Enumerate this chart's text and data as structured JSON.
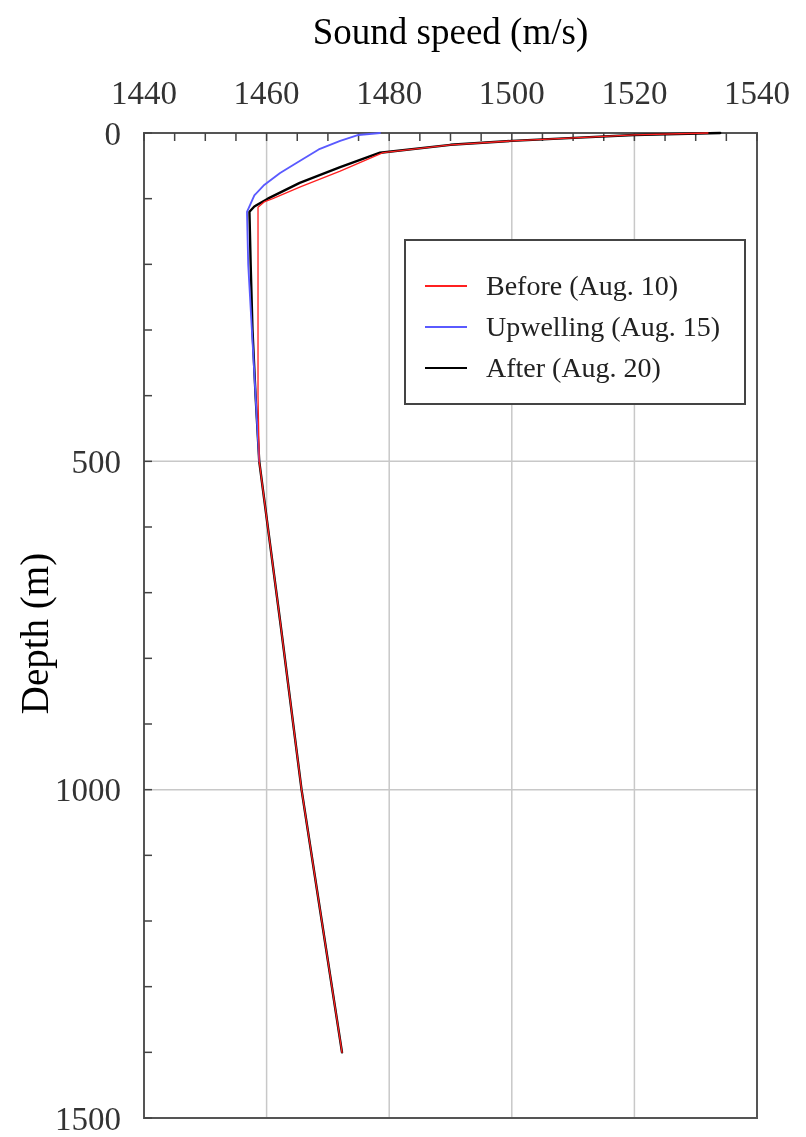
{
  "chart_data": {
    "type": "line",
    "xlabel": "Sound speed (m/s)",
    "ylabel": "Depth (m)",
    "xlim": [
      1440,
      1540
    ],
    "ylim": [
      1500,
      0
    ],
    "xticks": [
      1440,
      {
        "value": 1445,
        "label": null
      },
      {
        "value": 1450,
        "label": null
      },
      {
        "value": 1455,
        "label": null
      },
      1460,
      {
        "value": 1465,
        "label": null
      },
      {
        "value": 1470,
        "label": null
      },
      {
        "value": 1475,
        "label": null
      },
      1480,
      {
        "value": 1485,
        "label": null
      },
      {
        "value": 1490,
        "label": null
      },
      {
        "value": 1495,
        "label": null
      },
      1500,
      {
        "value": 1505,
        "label": null
      },
      {
        "value": 1510,
        "label": null
      },
      {
        "value": 1515,
        "label": null
      },
      1520,
      {
        "value": 1525,
        "label": null
      },
      {
        "value": 1530,
        "label": null
      },
      {
        "value": 1535,
        "label": null
      },
      1540
    ],
    "yticks": [
      0,
      {
        "value": 100,
        "label": null
      },
      {
        "value": 200,
        "label": null
      },
      {
        "value": 300,
        "label": null
      },
      {
        "value": 400,
        "label": null
      },
      500,
      {
        "value": 600,
        "label": null
      },
      {
        "value": 700,
        "label": null
      },
      {
        "value": 800,
        "label": null
      },
      {
        "value": 900,
        "label": null
      },
      1000,
      {
        "value": 1100,
        "label": null
      },
      {
        "value": 1200,
        "label": null
      },
      {
        "value": 1300,
        "label": null
      },
      {
        "value": 1400,
        "label": null
      },
      1500
    ],
    "grid": true,
    "legend": "top right",
    "series": [
      {
        "name": "Before (Aug. 10)",
        "color": "#ff2020",
        "x": [
          1532,
          1520,
          1511,
          1500,
          1490,
          1479,
          1472,
          1465.5,
          1461,
          1459.6,
          1458.6,
          1458.6,
          1458.6,
          1458.6,
          1458.6,
          1458.8,
          1462.3,
          1465.7,
          1469,
          1472.3
        ],
        "values": [
          0,
          3,
          7,
          12,
          18,
          30,
          58,
          82,
          100,
          105,
          113,
          125,
          200,
          300,
          400,
          500,
          750,
          1000,
          1200,
          1400
        ]
      },
      {
        "name": "Upwelling (Aug. 15)",
        "color": "#5a5aff",
        "x": [
          1478.5,
          1475,
          1472,
          1468.5,
          1465,
          1462.2,
          1459.5,
          1458,
          1456.8,
          1457,
          1457.6,
          1458.2,
          1458.8
        ],
        "values": [
          0,
          3,
          12,
          25,
          45,
          61,
          80,
          95,
          120,
          200,
          300,
          400,
          500
        ]
      },
      {
        "name": "After (Aug. 20)",
        "color": "#000000",
        "x": [
          1534,
          1520,
          1511,
          1500,
          1490,
          1478.5,
          1472,
          1465.4,
          1460.2,
          1458,
          1457.2,
          1457.4,
          1457.7,
          1458.2,
          1458.8,
          1462.3,
          1465.7,
          1469,
          1472.3
        ],
        "values": [
          0,
          3,
          7,
          12,
          18,
          30,
          52,
          76,
          100,
          112,
          120,
          200,
          300,
          400,
          500,
          750,
          1000,
          1200,
          1400
        ]
      }
    ]
  }
}
